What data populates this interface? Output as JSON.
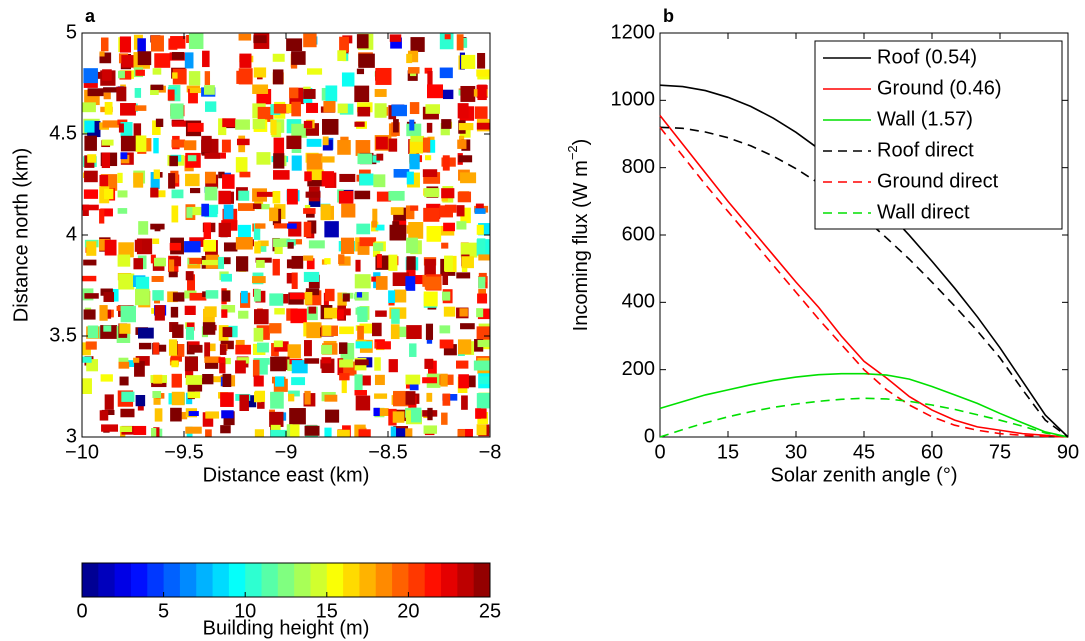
{
  "chart_data": [
    {
      "type": "map",
      "panel_label": "a",
      "xlabel": "Distance east (km)",
      "ylabel": "Distance north (km)",
      "xlim": [
        -10,
        -8
      ],
      "xticks": [
        {
          "value": -10,
          "label": "−10"
        },
        {
          "value": -9.5,
          "label": "−9.5"
        },
        {
          "value": -9,
          "label": "−9"
        },
        {
          "value": -8.5,
          "label": "−8.5"
        },
        {
          "value": -8,
          "label": "−8"
        }
      ],
      "ylim": [
        3,
        5
      ],
      "yticks": [
        3,
        3.5,
        4,
        4.5,
        5
      ],
      "colorbar": {
        "label": "Building height (m)",
        "lim": [
          0,
          25
        ],
        "ticks": [
          0,
          5,
          10,
          15,
          20,
          25
        ]
      }
    },
    {
      "type": "line",
      "panel_label": "b",
      "xlabel": "Solar zenith angle (°)",
      "ylabel": "Incoming flux (W m",
      "ylabel_sup": "−2",
      "ylabel_end": ")",
      "xlim": [
        0,
        90
      ],
      "xticks": [
        0,
        15,
        30,
        45,
        60,
        75,
        90
      ],
      "ylim": [
        0,
        1200
      ],
      "yticks": [
        0,
        200,
        400,
        600,
        800,
        1000,
        1200
      ],
      "legend": "upper right",
      "x": [
        0,
        5,
        10,
        15,
        20,
        25,
        30,
        35,
        40,
        45,
        50,
        55,
        60,
        65,
        70,
        75,
        80,
        85,
        90
      ],
      "series": [
        {
          "name": "Roof (0.54)",
          "color": "#000000",
          "dash": false,
          "values": [
            1045,
            1041,
            1029,
            1009,
            982,
            947,
            905,
            856,
            801,
            739,
            672,
            599,
            522,
            442,
            357,
            265,
            165,
            65,
            0
          ]
        },
        {
          "name": "Ground (0.46)",
          "color": "#ff0000",
          "dash": false,
          "values": [
            955,
            870,
            785,
            700,
            620,
            540,
            460,
            385,
            300,
            225,
            175,
            120,
            80,
            50,
            30,
            20,
            10,
            5,
            0
          ]
        },
        {
          "name": "Wall (1.57)",
          "color": "#00e000",
          "dash": false,
          "values": [
            85,
            105,
            125,
            140,
            155,
            168,
            178,
            185,
            188,
            188,
            184,
            172,
            150,
            125,
            100,
            70,
            42,
            15,
            0
          ]
        },
        {
          "name": "Roof direct",
          "color": "#000000",
          "dash": true,
          "values": [
            920,
            917,
            906,
            889,
            865,
            834,
            797,
            754,
            705,
            651,
            591,
            528,
            460,
            389,
            315,
            235,
            140,
            50,
            0
          ]
        },
        {
          "name": "Ground direct",
          "color": "#ff0000",
          "dash": true,
          "values": [
            920,
            835,
            750,
            670,
            590,
            510,
            430,
            350,
            275,
            200,
            140,
            95,
            60,
            35,
            20,
            10,
            5,
            2,
            0
          ]
        },
        {
          "name": "Wall direct",
          "color": "#00e000",
          "dash": true,
          "values": [
            0,
            22,
            42,
            60,
            75,
            88,
            98,
            106,
            112,
            115,
            113,
            106,
            95,
            82,
            66,
            50,
            32,
            12,
            0
          ]
        }
      ]
    }
  ]
}
